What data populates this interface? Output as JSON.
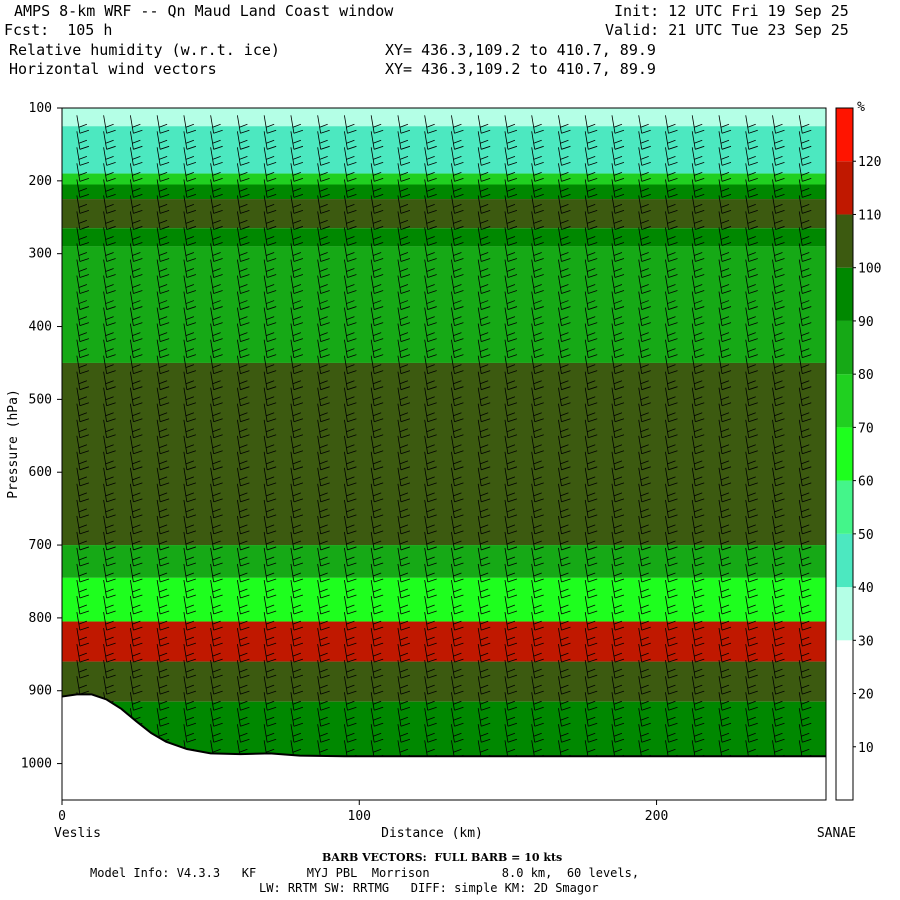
{
  "header": {
    "title": "AMPS 8-km WRF -- Qn Maud Land Coast window",
    "fcst": "Fcst:  105 h",
    "init": "Init: 12 UTC Fri 19 Sep 25",
    "valid": "Valid: 21 UTC Tue 23 Sep 25",
    "field1": "Relative humidity (w.r.t. ice)",
    "field2": "Horizontal wind vectors",
    "xy1": "XY= 436.3,109.2 to 410.7, 89.9",
    "xy2": "XY= 436.3,109.2 to 410.7, 89.9"
  },
  "chart_data": {
    "type": "heatmap",
    "title": "Relative humidity (w.r.t. ice)",
    "xlabel": "Distance (km)",
    "ylabel": "Pressure (hPa)",
    "xlim": [
      0,
      257
    ],
    "ylim": [
      1050,
      100
    ],
    "x_ticks": [
      0,
      100,
      200
    ],
    "y_ticks": [
      100,
      200,
      300,
      400,
      500,
      600,
      700,
      800,
      900,
      1000
    ],
    "x_end_labels": {
      "left": "Veslis",
      "right": "SANAE"
    },
    "colorbar": {
      "unit": "%",
      "levels": [
        10,
        20,
        30,
        40,
        50,
        60,
        70,
        80,
        90,
        100,
        110,
        120
      ],
      "colors": [
        "#ffffff",
        "#ffffff",
        "#ffffff",
        "#b4ffe6",
        "#4ce8c0",
        "#44f58a",
        "#1eff1e",
        "#20d020",
        "#16a916",
        "#008800",
        "#3c5a10",
        "#c01800",
        "#ff1400"
      ]
    },
    "bands": [
      {
        "from": 100,
        "to": 125,
        "rh": 35
      },
      {
        "from": 125,
        "to": 190,
        "rh": 48
      },
      {
        "from": 190,
        "to": 205,
        "rh": 75
      },
      {
        "from": 205,
        "to": 225,
        "rh": 92
      },
      {
        "from": 225,
        "to": 265,
        "rh": 102
      },
      {
        "from": 265,
        "to": 290,
        "rh": 92
      },
      {
        "from": 290,
        "to": 450,
        "rh": 80
      },
      {
        "from": 450,
        "to": 700,
        "rh": 105
      },
      {
        "from": 700,
        "to": 745,
        "rh": 88
      },
      {
        "from": 745,
        "to": 805,
        "rh": 65
      },
      {
        "from": 805,
        "to": 860,
        "rh": 115
      },
      {
        "from": 860,
        "to": 915,
        "rh": 102
      },
      {
        "from": 915,
        "to": 1000,
        "rh": 95
      }
    ],
    "terrain_hPa": [
      {
        "x": 0,
        "p": 908
      },
      {
        "x": 5,
        "p": 905
      },
      {
        "x": 10,
        "p": 905
      },
      {
        "x": 15,
        "p": 912
      },
      {
        "x": 20,
        "p": 925
      },
      {
        "x": 25,
        "p": 942
      },
      {
        "x": 30,
        "p": 958
      },
      {
        "x": 35,
        "p": 970
      },
      {
        "x": 42,
        "p": 980
      },
      {
        "x": 50,
        "p": 986
      },
      {
        "x": 60,
        "p": 987
      },
      {
        "x": 70,
        "p": 986
      },
      {
        "x": 80,
        "p": 989
      },
      {
        "x": 95,
        "p": 990
      },
      {
        "x": 120,
        "p": 990
      },
      {
        "x": 257,
        "p": 990
      }
    ],
    "wind_barbs": "Horizontal wind vectors"
  },
  "footer": {
    "barb_note": "BARB VECTORS:  FULL BARB = 10 kts",
    "model_line1": "Model Info: V4.3.3   KF       MYJ PBL  Morrison          8.0 km,  60 levels,",
    "model_line2": "LW: RRTM SW: RRTMG   DIFF: simple KM: 2D Smagor"
  }
}
